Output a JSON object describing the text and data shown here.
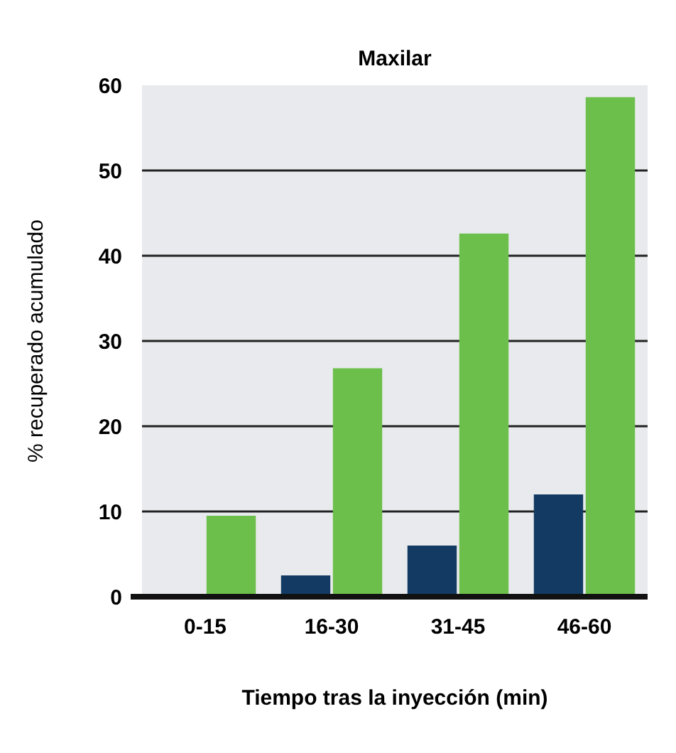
{
  "chart_data": {
    "type": "bar",
    "title": "Maxilar",
    "xlabel": "Tiempo tras la inyección (min)",
    "ylabel": "% recuperado acumulado",
    "categories": [
      "0-15",
      "16-30",
      "31-45",
      "46-60"
    ],
    "series": [
      {
        "color": "#123a62",
        "values": [
          0,
          2.5,
          6,
          12
        ]
      },
      {
        "color": "#6cbf4a",
        "values": [
          9.5,
          26.8,
          42.6,
          58.6
        ]
      }
    ],
    "ylim": [
      0,
      60
    ],
    "yticks": [
      0,
      10,
      20,
      30,
      40,
      50,
      60
    ],
    "grid": "y"
  }
}
